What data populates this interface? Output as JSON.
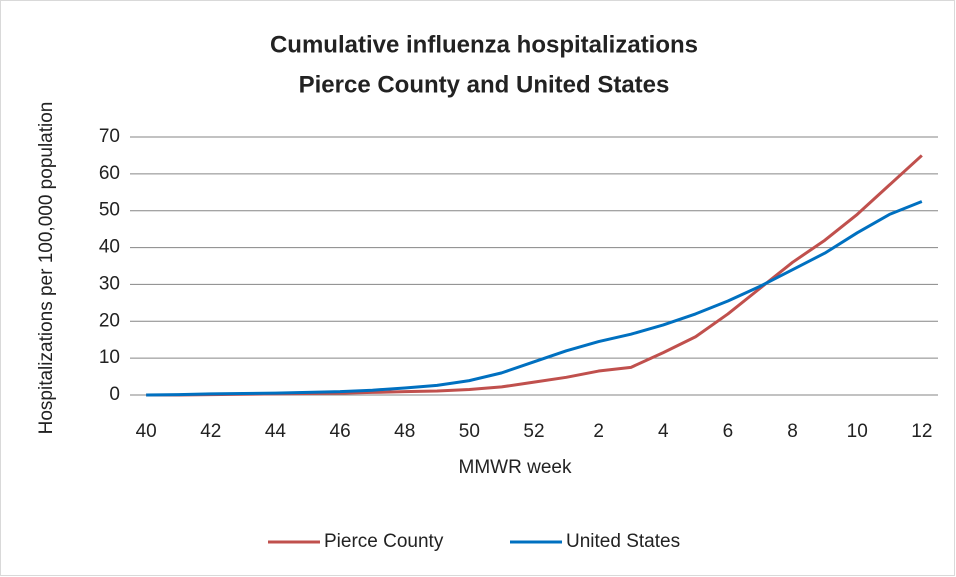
{
  "chart_data": {
    "type": "line",
    "title": [
      "Cumulative influenza hospitalizations",
      "Pierce County and United States"
    ],
    "x_label": "MMWR week",
    "y_label": "Hospitalizations per 100,000 population",
    "categories": [
      "40",
      null,
      "42",
      null,
      "44",
      null,
      "46",
      null,
      "48",
      null,
      "50",
      null,
      "52",
      null,
      "2",
      null,
      "4",
      null,
      "6",
      null,
      "8",
      null,
      "10",
      null,
      "12"
    ],
    "series": [
      {
        "name": "Pierce County",
        "color": "#c0504d",
        "values": [
          0,
          0,
          0.1,
          0.2,
          0.3,
          0.4,
          0.5,
          0.7,
          0.9,
          1.1,
          1.5,
          2.2,
          3.5,
          4.8,
          6.5,
          7.5,
          11.5,
          15.8,
          22,
          29,
          36,
          42,
          49,
          57,
          65
        ]
      },
      {
        "name": "United States",
        "color": "#0070c0",
        "values": [
          0,
          0.1,
          0.3,
          0.4,
          0.5,
          0.7,
          0.9,
          1.3,
          1.9,
          2.6,
          3.9,
          6,
          9,
          12,
          14.5,
          16.5,
          19,
          22,
          25.5,
          29.5,
          34,
          38.5,
          44,
          49,
          52.5
        ]
      }
    ],
    "ylim": [
      0,
      70
    ],
    "yticks": [
      0,
      10,
      20,
      30,
      40,
      50,
      60,
      70
    ],
    "grid": true,
    "legend": "bottom"
  }
}
